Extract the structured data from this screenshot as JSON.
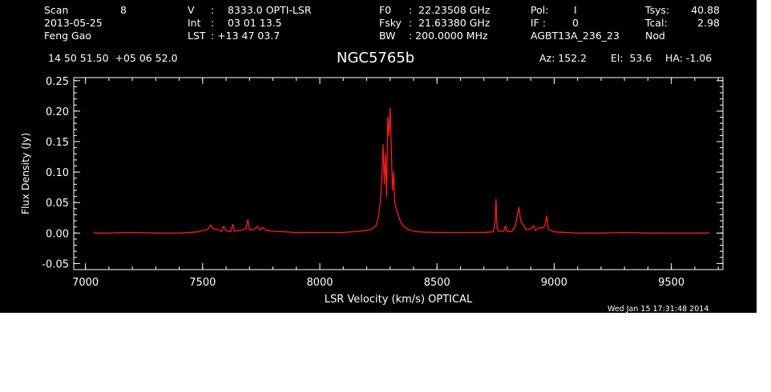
{
  "header": {
    "col1": {
      "scan_label": "Scan",
      "scan_value": "8",
      "date": "2013-05-25",
      "observer": "Feng Gao"
    },
    "col2": {
      "v_label": "V",
      "v_sep": ":",
      "v_value": "8333.0 OPTI-LSR",
      "int_label": "Int",
      "int_sep": ":",
      "int_value": "03 01 13.5",
      "lst_label": "LST",
      "lst_value": ": +13 47 03.7"
    },
    "col3": {
      "f0_label": "F0",
      "f0_value": ":  22.23508 GHz",
      "fsky_label": "Fsky",
      "fsky_value": ":  21.63380 GHz",
      "bw_label": "BW",
      "bw_value": ": 200.0000 MHz"
    },
    "col4": {
      "pol_label": "Pol:",
      "pol_value": "I",
      "if_label": "IF :",
      "if_value": "0",
      "project": "AGBT13A_236_23"
    },
    "col5": {
      "tsys_label": "Tsys:",
      "tsys_value": "40.88",
      "tcal_label": "Tcal:",
      "tcal_value": "2.98",
      "mode": "Nod"
    },
    "coords": "14 50 51.50  +05 06 52.0",
    "source": "NGC5765b",
    "az": "Az: 152.2",
    "el": "El:  53.6",
    "ha": "HA: -1.06"
  },
  "timestamp": "Wed Jan 15 17:31:48 2014",
  "colors": {
    "background": "#000000",
    "axes": "#ffffff",
    "trace": "#ff1a1a"
  },
  "chart_data": {
    "type": "line",
    "title": "NGC5765b",
    "xlabel": "LSR Velocity (km/s) OPTICAL",
    "ylabel": "Flux Density (Jy)",
    "xlim": [
      6950,
      9720
    ],
    "ylim": [
      -0.06,
      0.255
    ],
    "xticks": [
      7000,
      7500,
      8000,
      8500,
      9000,
      9500
    ],
    "xtick_labels": [
      "7000",
      "7500",
      "8000",
      "8500",
      "9000",
      "9500"
    ],
    "yticks": [
      -0.05,
      0.0,
      0.05,
      0.1,
      0.15,
      0.2,
      0.25
    ],
    "ytick_labels": [
      "-0.05",
      "0.00",
      "0.05",
      "0.10",
      "0.15",
      "0.20",
      "0.25"
    ],
    "grid": false,
    "series": [
      {
        "x": [
          7035,
          7100,
          7200,
          7300,
          7400,
          7480,
          7520,
          7535,
          7545,
          7560,
          7580,
          7590,
          7600,
          7620,
          7628,
          7636,
          7660,
          7685,
          7693,
          7700,
          7720,
          7733,
          7745,
          7758,
          7770,
          7800,
          7900,
          8000,
          8100,
          8180,
          8220,
          8240,
          8250,
          8258,
          8265,
          8270,
          8275,
          8280,
          8285,
          8290,
          8295,
          8300,
          8305,
          8310,
          8315,
          8320,
          8330,
          8345,
          8360,
          8380,
          8420,
          8500,
          8600,
          8700,
          8740,
          8748,
          8752,
          8756,
          8765,
          8785,
          8792,
          8800,
          8820,
          8835,
          8845,
          8850,
          8857,
          8865,
          8880,
          8900,
          8912,
          8920,
          8935,
          8950,
          8960,
          8968,
          8975,
          9000,
          9100,
          9200,
          9300,
          9400,
          9500,
          9600,
          9660
        ],
        "y": [
          0.0,
          0.0,
          0.001,
          0.0,
          0.0,
          0.002,
          0.006,
          0.013,
          0.007,
          0.006,
          0.003,
          0.011,
          0.004,
          0.002,
          0.014,
          0.003,
          0.004,
          0.007,
          0.022,
          0.005,
          0.006,
          0.011,
          0.005,
          0.009,
          0.004,
          0.003,
          0.001,
          0.001,
          0.001,
          0.003,
          0.006,
          0.012,
          0.025,
          0.05,
          0.09,
          0.145,
          0.08,
          0.13,
          0.06,
          0.19,
          0.16,
          0.205,
          0.14,
          0.07,
          0.1,
          0.05,
          0.035,
          0.018,
          0.01,
          0.005,
          0.002,
          0.001,
          0.001,
          0.001,
          0.002,
          0.018,
          0.055,
          0.008,
          0.003,
          0.003,
          0.012,
          0.002,
          0.003,
          0.012,
          0.035,
          0.042,
          0.02,
          0.015,
          0.006,
          0.007,
          0.012,
          0.004,
          0.009,
          0.008,
          0.012,
          0.028,
          0.006,
          0.002,
          0.0,
          0.0,
          0.001,
          0.0,
          0.0,
          0.0,
          0.0
        ]
      }
    ]
  }
}
